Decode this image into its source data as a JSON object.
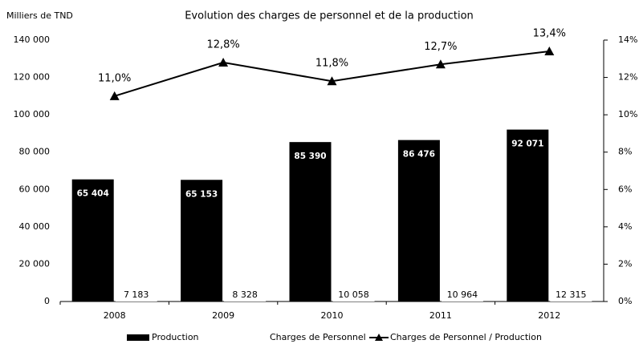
{
  "chart_data": {
    "type": "bar",
    "title": "Evolution des charges de personnel et de la production",
    "y_axis_label": "Milliers de TND",
    "categories": [
      "2008",
      "2009",
      "2010",
      "2011",
      "2012"
    ],
    "series": [
      {
        "name": "Production",
        "color": "#000000",
        "values": [
          65404,
          65153,
          85390,
          86476,
          92071
        ],
        "value_labels": [
          "65 404",
          "65 153",
          "85 390",
          "86 476",
          "92 071"
        ]
      },
      {
        "name": "Charges de Personnel",
        "color": "#ffffff",
        "values": [
          7183,
          8328,
          10058,
          10964,
          12315
        ],
        "value_labels": [
          "7 183",
          "8 328",
          "10 058",
          "10 964",
          "12 315"
        ]
      },
      {
        "name": "Charges de Personnel / Production",
        "type": "line",
        "axis": "y2",
        "color": "#000000",
        "values": [
          11.0,
          12.8,
          11.8,
          12.7,
          13.4
        ],
        "value_labels": [
          "11,0%",
          "12,8%",
          "11,8%",
          "12,7%",
          "13,4%"
        ]
      }
    ],
    "ylim": [
      0,
      140000
    ],
    "yticks": [
      0,
      {
        "value": 20000,
        "label": "20 000"
      },
      {
        "value": 40000,
        "label": "40 000"
      },
      {
        "value": 60000,
        "label": "60 000"
      },
      {
        "value": 80000,
        "label": "80 000"
      },
      {
        "value": 100000,
        "label": "100 000"
      },
      {
        "value": 120000,
        "label": "120 000"
      },
      {
        "value": 140000,
        "label": "140 000"
      }
    ],
    "y2lim": [
      0,
      14
    ],
    "y2ticks": [
      {
        "value": 0,
        "label": "0%"
      },
      {
        "value": 2,
        "label": "2%"
      },
      {
        "value": 4,
        "label": "4%"
      },
      {
        "value": 6,
        "label": "6%"
      },
      {
        "value": 8,
        "label": "8%"
      },
      {
        "value": 10,
        "label": "10%"
      },
      {
        "value": 12,
        "label": "12%"
      },
      {
        "value": 14,
        "label": "14%"
      }
    ],
    "grid": false,
    "legend": "bottom"
  }
}
